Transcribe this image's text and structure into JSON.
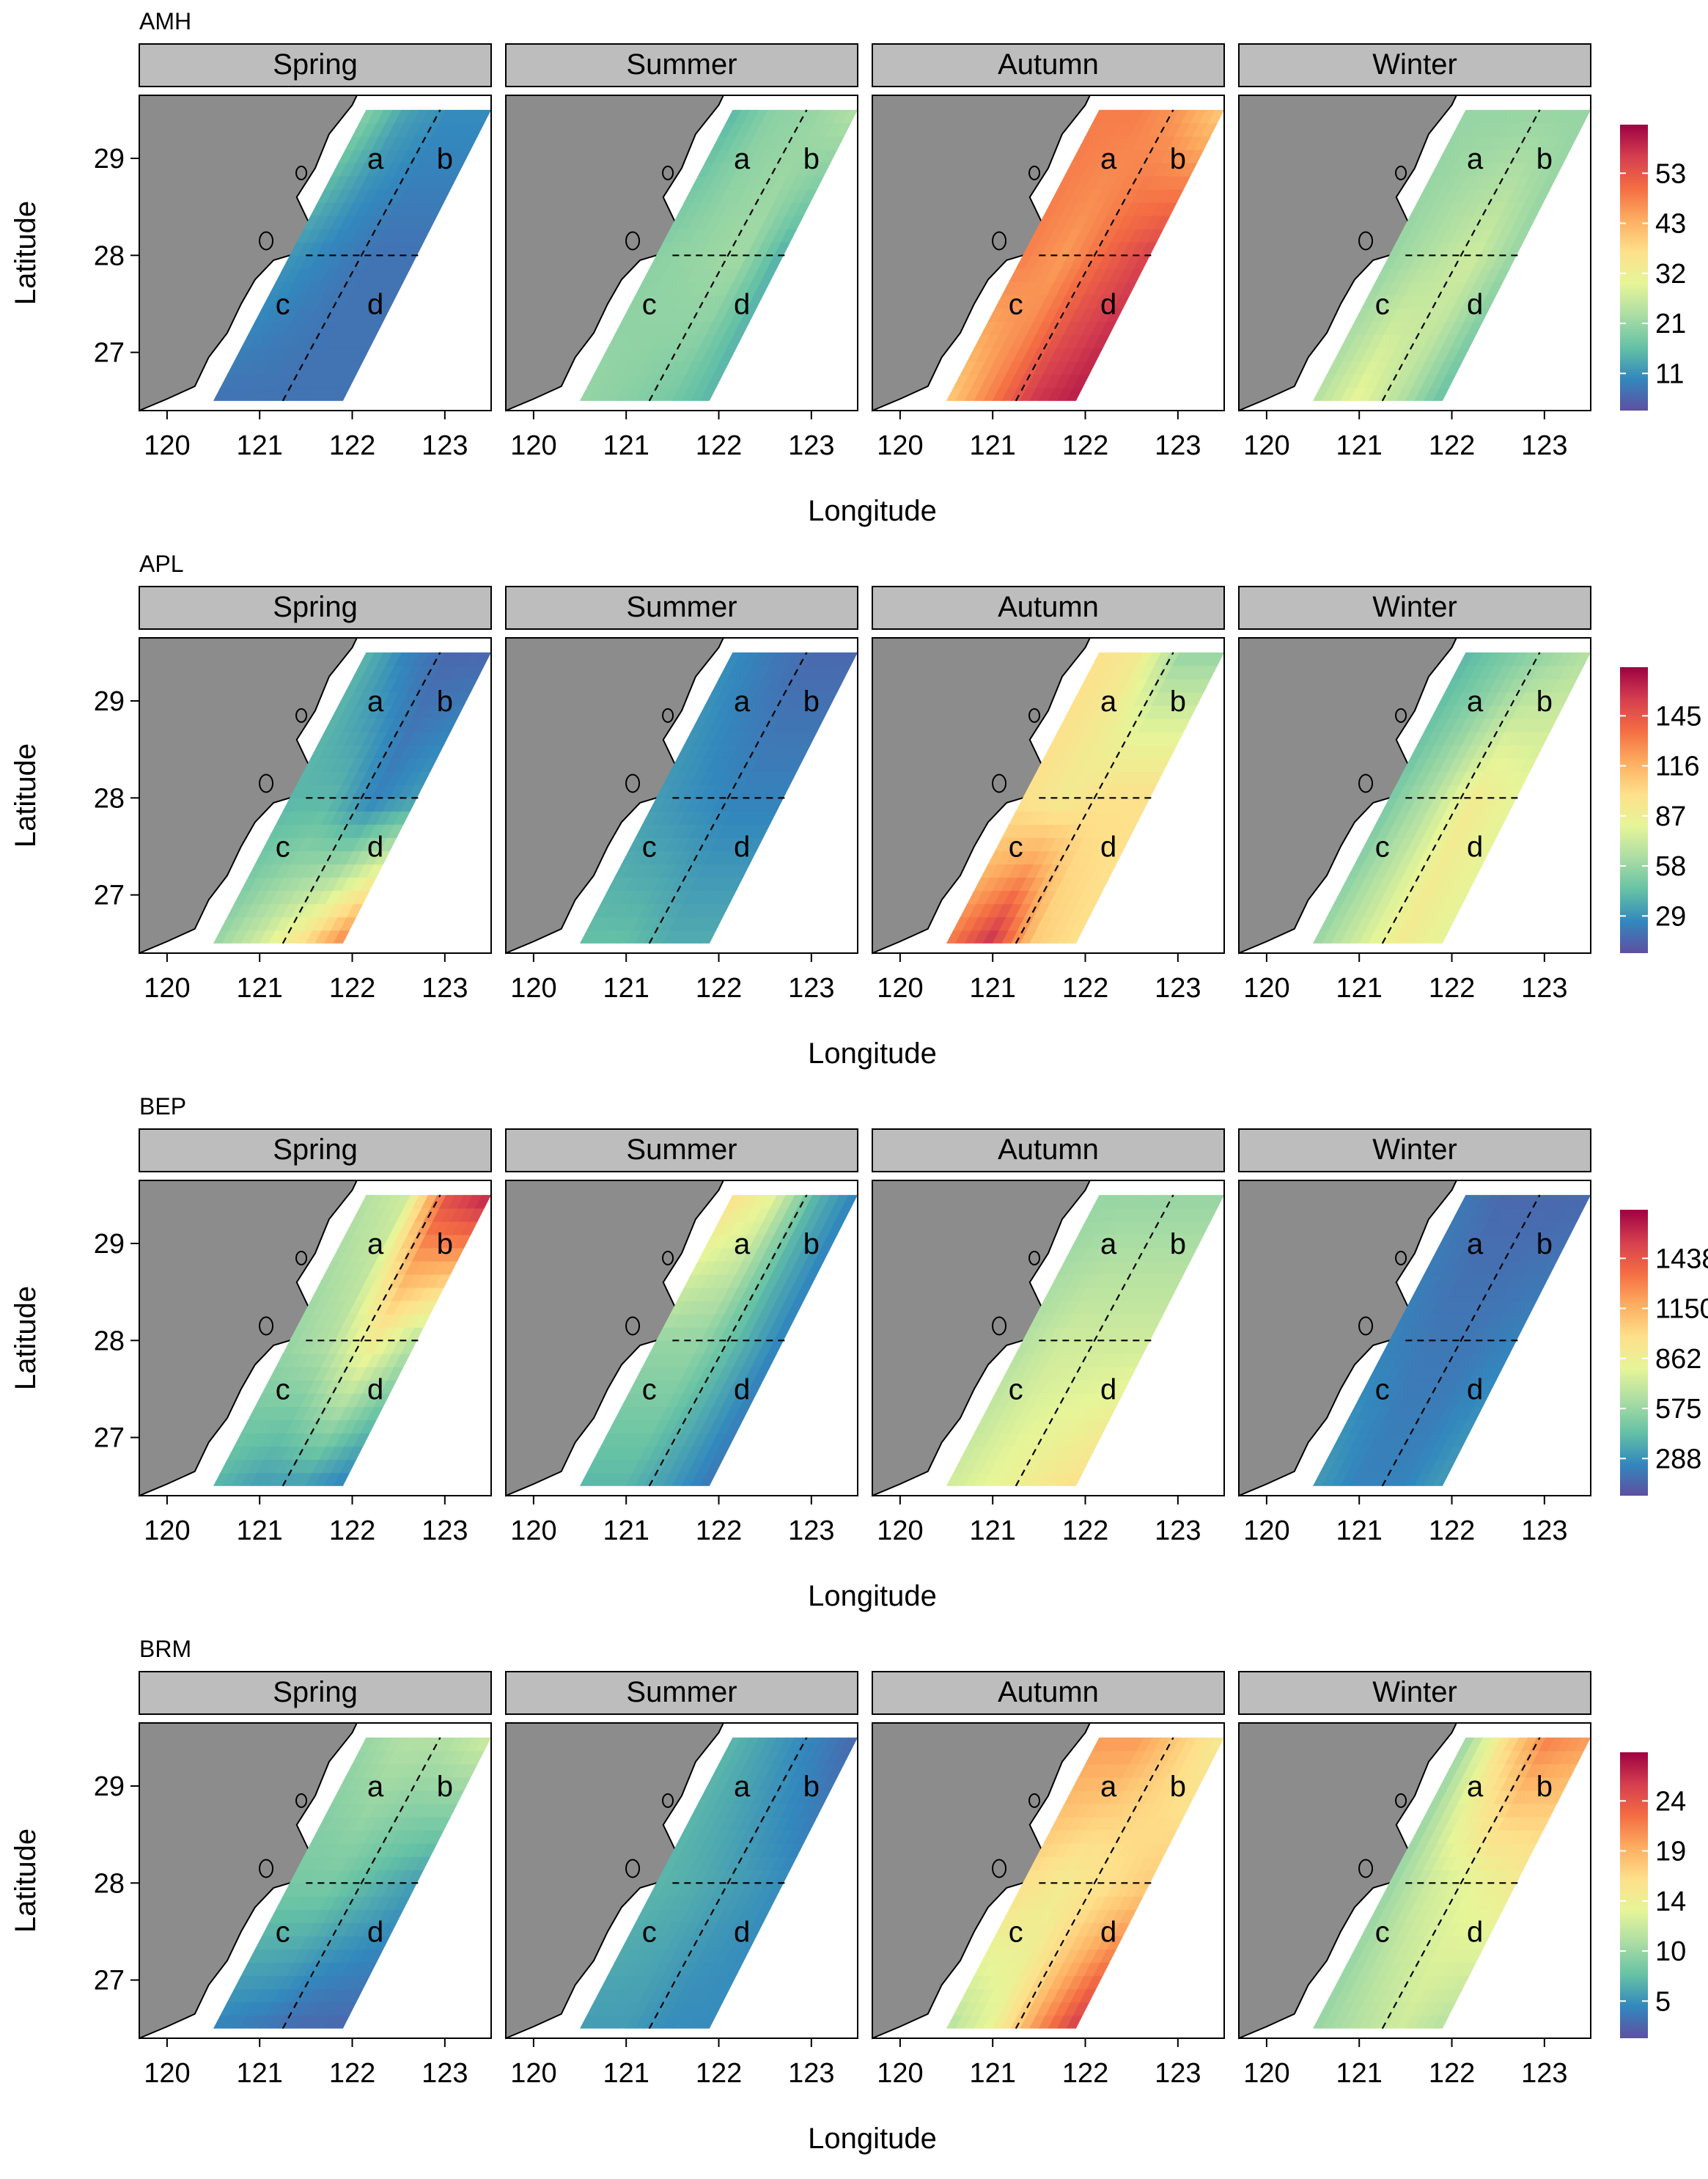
{
  "figure": {
    "y_axis_label": "Latitude",
    "x_axis_label": "Longitude",
    "x_ticks": [
      "120",
      "121",
      "122",
      "123"
    ],
    "y_ticks": [
      "29",
      "28",
      "27"
    ],
    "seasons": [
      "Spring",
      "Summer",
      "Autumn",
      "Winter"
    ],
    "region_labels": [
      "a",
      "b",
      "c",
      "d"
    ],
    "colors": {
      "land": "#8c8c8c",
      "strip_bg": "#bdbdbd",
      "palette": [
        "#5e4fa2",
        "#3288bd",
        "#66c2a5",
        "#abdda4",
        "#e6f598",
        "#fee08b",
        "#fdae61",
        "#f46d43",
        "#d53e4f",
        "#9e0142"
      ]
    }
  },
  "chart_data": [
    {
      "type": "heatmap",
      "title": "AMH",
      "legend_ticks": [
        "53",
        "43",
        "32",
        "21",
        "11"
      ],
      "panels": [
        {
          "season": "Spring",
          "field": [
            [
              0.28,
              0.16,
              0.12,
              0.12
            ],
            [
              0.14,
              0.1,
              0.07,
              0.07
            ],
            [
              0.07,
              0.07,
              0.07,
              0.07
            ]
          ]
        },
        {
          "season": "Summer",
          "field": [
            [
              0.2,
              0.28,
              0.3,
              0.35
            ],
            [
              0.28,
              0.3,
              0.32,
              0.18
            ],
            [
              0.3,
              0.28,
              0.25,
              0.2
            ]
          ]
        },
        {
          "season": "Autumn",
          "field": [
            [
              0.75,
              0.75,
              0.7,
              0.6
            ],
            [
              0.75,
              0.7,
              0.8,
              0.88
            ],
            [
              0.6,
              0.75,
              0.9,
              0.95
            ]
          ]
        },
        {
          "season": "Winter",
          "field": [
            [
              0.3,
              0.3,
              0.3,
              0.3
            ],
            [
              0.3,
              0.35,
              0.4,
              0.3
            ],
            [
              0.35,
              0.45,
              0.35,
              0.22
            ]
          ]
        }
      ]
    },
    {
      "type": "heatmap",
      "title": "APL",
      "legend_ticks": [
        "145",
        "116",
        "87",
        "58",
        "29"
      ],
      "panels": [
        {
          "season": "Spring",
          "field": [
            [
              0.2,
              0.1,
              0.05,
              0.05
            ],
            [
              0.2,
              0.2,
              0.1,
              0.15
            ],
            [
              0.3,
              0.4,
              0.55,
              0.75
            ]
          ]
        },
        {
          "season": "Summer",
          "field": [
            [
              0.12,
              0.08,
              0.05,
              0.05
            ],
            [
              0.15,
              0.12,
              0.1,
              0.1
            ],
            [
              0.22,
              0.22,
              0.18,
              0.18
            ]
          ]
        },
        {
          "season": "Autumn",
          "field": [
            [
              0.55,
              0.5,
              0.3,
              0.3
            ],
            [
              0.55,
              0.5,
              0.55,
              0.55
            ],
            [
              0.75,
              0.92,
              0.6,
              0.55
            ]
          ]
        },
        {
          "season": "Winter",
          "field": [
            [
              0.2,
              0.25,
              0.3,
              0.35
            ],
            [
              0.25,
              0.35,
              0.5,
              0.45
            ],
            [
              0.3,
              0.4,
              0.5,
              0.45
            ]
          ]
        }
      ]
    },
    {
      "type": "heatmap",
      "title": "BEP",
      "legend_ticks": [
        "1438",
        "1150",
        "862",
        "575",
        "288"
      ],
      "panels": [
        {
          "season": "Spring",
          "field": [
            [
              0.35,
              0.4,
              0.85,
              0.95
            ],
            [
              0.3,
              0.35,
              0.5,
              0.35
            ],
            [
              0.2,
              0.15,
              0.15,
              0.1
            ]
          ]
        },
        {
          "season": "Summer",
          "field": [
            [
              0.55,
              0.45,
              0.2,
              0.1
            ],
            [
              0.3,
              0.3,
              0.2,
              0.1
            ],
            [
              0.2,
              0.2,
              0.15,
              0.08
            ]
          ]
        },
        {
          "season": "Autumn",
          "field": [
            [
              0.3,
              0.3,
              0.3,
              0.3
            ],
            [
              0.35,
              0.4,
              0.4,
              0.4
            ],
            [
              0.4,
              0.45,
              0.5,
              0.55
            ]
          ]
        },
        {
          "season": "Winter",
          "field": [
            [
              0.08,
              0.05,
              0.05,
              0.05
            ],
            [
              0.1,
              0.08,
              0.08,
              0.1
            ],
            [
              0.15,
              0.1,
              0.1,
              0.15
            ]
          ]
        }
      ]
    },
    {
      "type": "heatmap",
      "title": "BRM",
      "legend_ticks": [
        "24",
        "19",
        "14",
        "10",
        "5"
      ],
      "panels": [
        {
          "season": "Spring",
          "field": [
            [
              0.3,
              0.35,
              0.35,
              0.4
            ],
            [
              0.25,
              0.25,
              0.2,
              0.15
            ],
            [
              0.1,
              0.08,
              0.05,
              0.05
            ]
          ]
        },
        {
          "season": "Summer",
          "field": [
            [
              0.2,
              0.15,
              0.1,
              0.05
            ],
            [
              0.2,
              0.18,
              0.15,
              0.12
            ],
            [
              0.15,
              0.15,
              0.12,
              0.12
            ]
          ]
        },
        {
          "season": "Autumn",
          "field": [
            [
              0.7,
              0.7,
              0.6,
              0.5
            ],
            [
              0.55,
              0.5,
              0.55,
              0.6
            ],
            [
              0.35,
              0.45,
              0.7,
              0.9
            ]
          ]
        },
        {
          "season": "Winter",
          "field": [
            [
              0.3,
              0.55,
              0.75,
              0.7
            ],
            [
              0.3,
              0.4,
              0.45,
              0.5
            ],
            [
              0.3,
              0.35,
              0.4,
              0.35
            ]
          ]
        }
      ]
    }
  ]
}
